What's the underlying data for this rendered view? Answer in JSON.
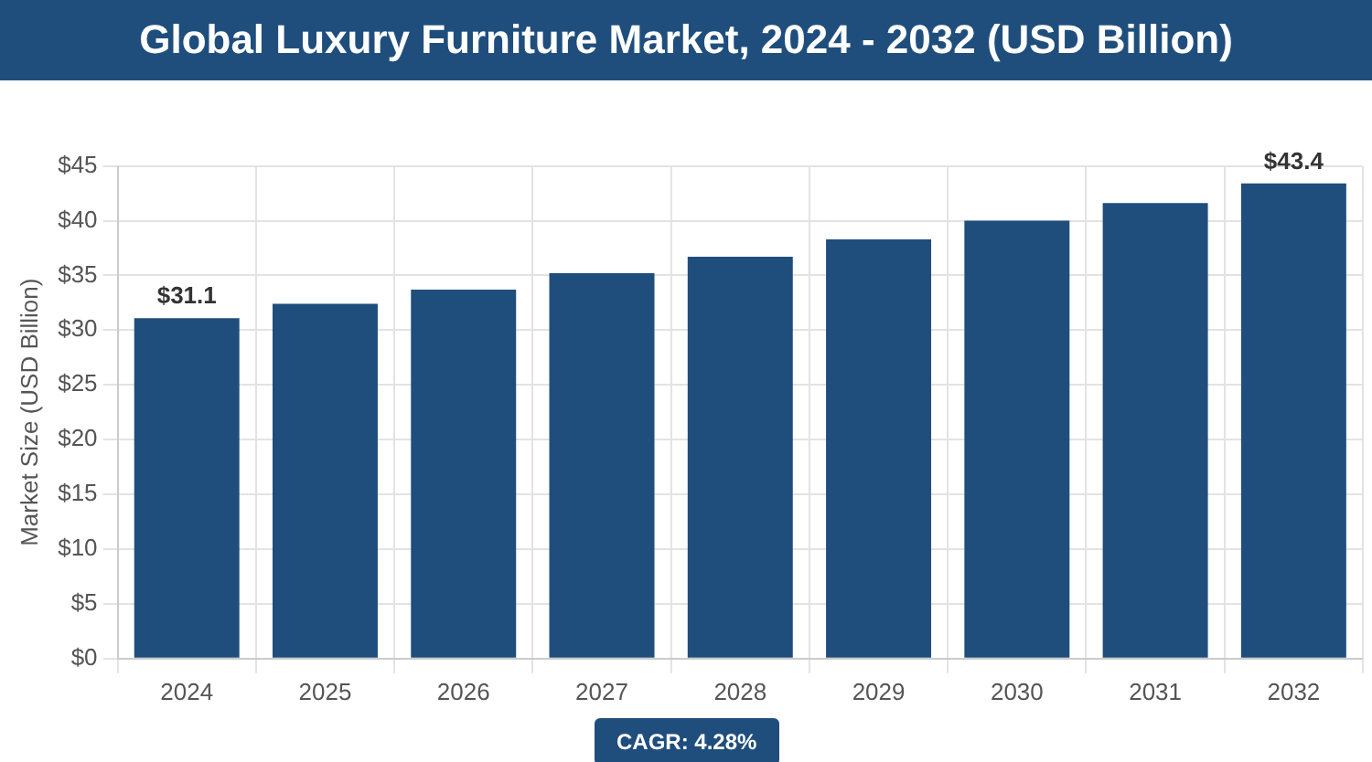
{
  "chart_data": {
    "type": "bar",
    "title": "Global Luxury Furniture Market, 2024 - 2032 (USD Billion)",
    "ylabel": "Market Size (USD Billion)",
    "categories": [
      "2024",
      "2025",
      "2026",
      "2027",
      "2028",
      "2029",
      "2030",
      "2031",
      "2032"
    ],
    "values": [
      31.1,
      32.4,
      33.7,
      35.2,
      36.7,
      38.3,
      40.0,
      41.6,
      43.4
    ],
    "value_labels": [
      "$31.1",
      null,
      null,
      null,
      null,
      null,
      null,
      null,
      "$43.4"
    ],
    "color": "#1f4e7d",
    "ylim": [
      0,
      45
    ],
    "yticks": [
      {
        "value": 0,
        "label": "$0"
      },
      {
        "value": 5,
        "label": "$5"
      },
      {
        "value": 10,
        "label": "$10"
      },
      {
        "value": 15,
        "label": "$15"
      },
      {
        "value": 20,
        "label": "$20"
      },
      {
        "value": 25,
        "label": "$25"
      },
      {
        "value": 30,
        "label": "$30"
      },
      {
        "value": 35,
        "label": "$35"
      },
      {
        "value": 40,
        "label": "$40"
      },
      {
        "value": 45,
        "label": "$45"
      }
    ],
    "grid": true,
    "legend": false,
    "annotations": [
      "CAGR: 4.28%"
    ]
  }
}
